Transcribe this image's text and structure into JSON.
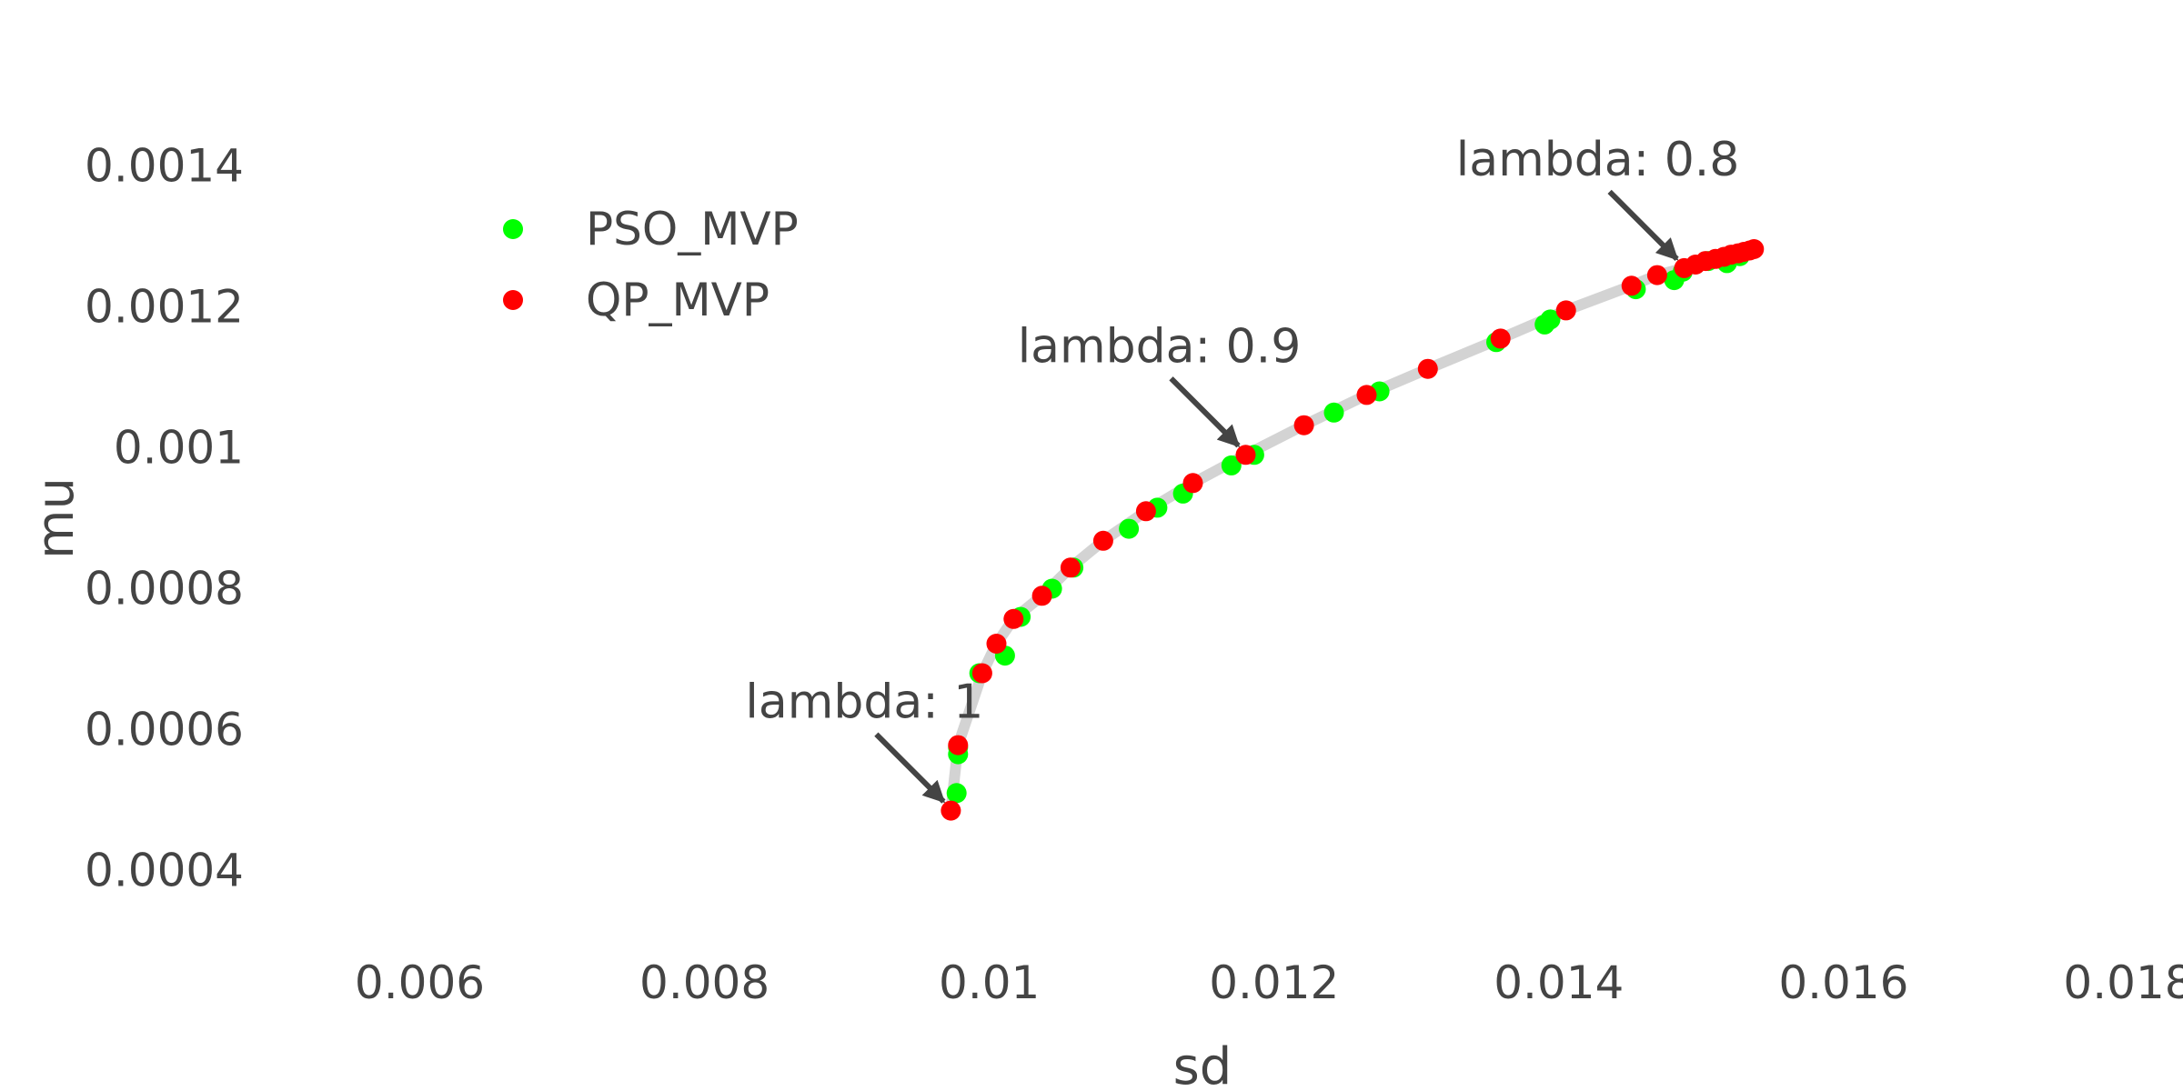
{
  "chart_data": {
    "type": "scatter",
    "xlabel": "sd",
    "ylabel": "mu",
    "xlim": [
      0.005,
      0.018
    ],
    "ylim": [
      0.0003,
      0.0015
    ],
    "x_ticks": [
      0.006,
      0.008,
      0.01,
      0.012,
      0.014,
      0.016,
      0.018
    ],
    "x_tick_labels": [
      "0.006",
      "0.008",
      "0.01",
      "0.012",
      "0.014",
      "0.016",
      "0.018"
    ],
    "y_ticks": [
      0.0004,
      0.0006,
      0.0008,
      0.001,
      0.0012,
      0.0014
    ],
    "y_tick_labels": [
      "0.0004",
      "0.0006",
      "0.0008",
      "0.001",
      "0.0012",
      "0.0014"
    ],
    "grid": false,
    "legend_position": "top-left",
    "frontier_line_color": "#d3d3d3",
    "series": [
      {
        "name": "PSO_MVP",
        "color": "#00ff00",
        "x": [
          0.00977,
          0.00978,
          0.00978,
          0.00993,
          0.01011,
          0.01022,
          0.01044,
          0.01059,
          0.01098,
          0.01118,
          0.01136,
          0.0117,
          0.01186,
          0.01242,
          0.01274,
          0.01356,
          0.0139,
          0.01394,
          0.01454,
          0.01481,
          0.01487,
          0.01505,
          0.01518,
          0.01527
        ],
        "y": [
          0.00051,
          0.000565,
          0.000575,
          0.00068,
          0.000705,
          0.00076,
          0.0008,
          0.00083,
          0.000885,
          0.000915,
          0.000935,
          0.000975,
          0.00099,
          0.00105,
          0.00108,
          0.00115,
          0.001175,
          0.001182,
          0.001225,
          0.001238,
          0.00125,
          0.001265,
          0.001262,
          0.001272
        ]
      },
      {
        "name": "QP_MVP",
        "color": "#ff0000",
        "x": [
          0.00973,
          0.00978,
          0.00995,
          0.01005,
          0.01017,
          0.01037,
          0.01057,
          0.0108,
          0.0111,
          0.01143,
          0.0118,
          0.01221,
          0.01265,
          0.01308,
          0.01359,
          0.01405,
          0.01451,
          0.01469,
          0.01488,
          0.01496,
          0.01503,
          0.0151,
          0.01516,
          0.01521,
          0.01526,
          0.0153,
          0.01534,
          0.01537
        ],
        "y": [
          0.000485,
          0.000578,
          0.00068,
          0.000722,
          0.000757,
          0.00079,
          0.00083,
          0.000868,
          0.00091,
          0.00095,
          0.00099,
          0.001032,
          0.001075,
          0.001112,
          0.001155,
          0.001195,
          0.00123,
          0.001245,
          0.001255,
          0.00126,
          0.001265,
          0.001268,
          0.001271,
          0.001274,
          0.001276,
          0.001278,
          0.00128,
          0.001282
        ]
      }
    ],
    "annotations": [
      {
        "text": "lambda: 1",
        "x": 0.00973,
        "y": 0.000485
      },
      {
        "text": "lambda: 0.9",
        "x": 0.0118,
        "y": 0.00099
      },
      {
        "text": "lambda: 0.8",
        "x": 0.01488,
        "y": 0.001255
      }
    ]
  }
}
